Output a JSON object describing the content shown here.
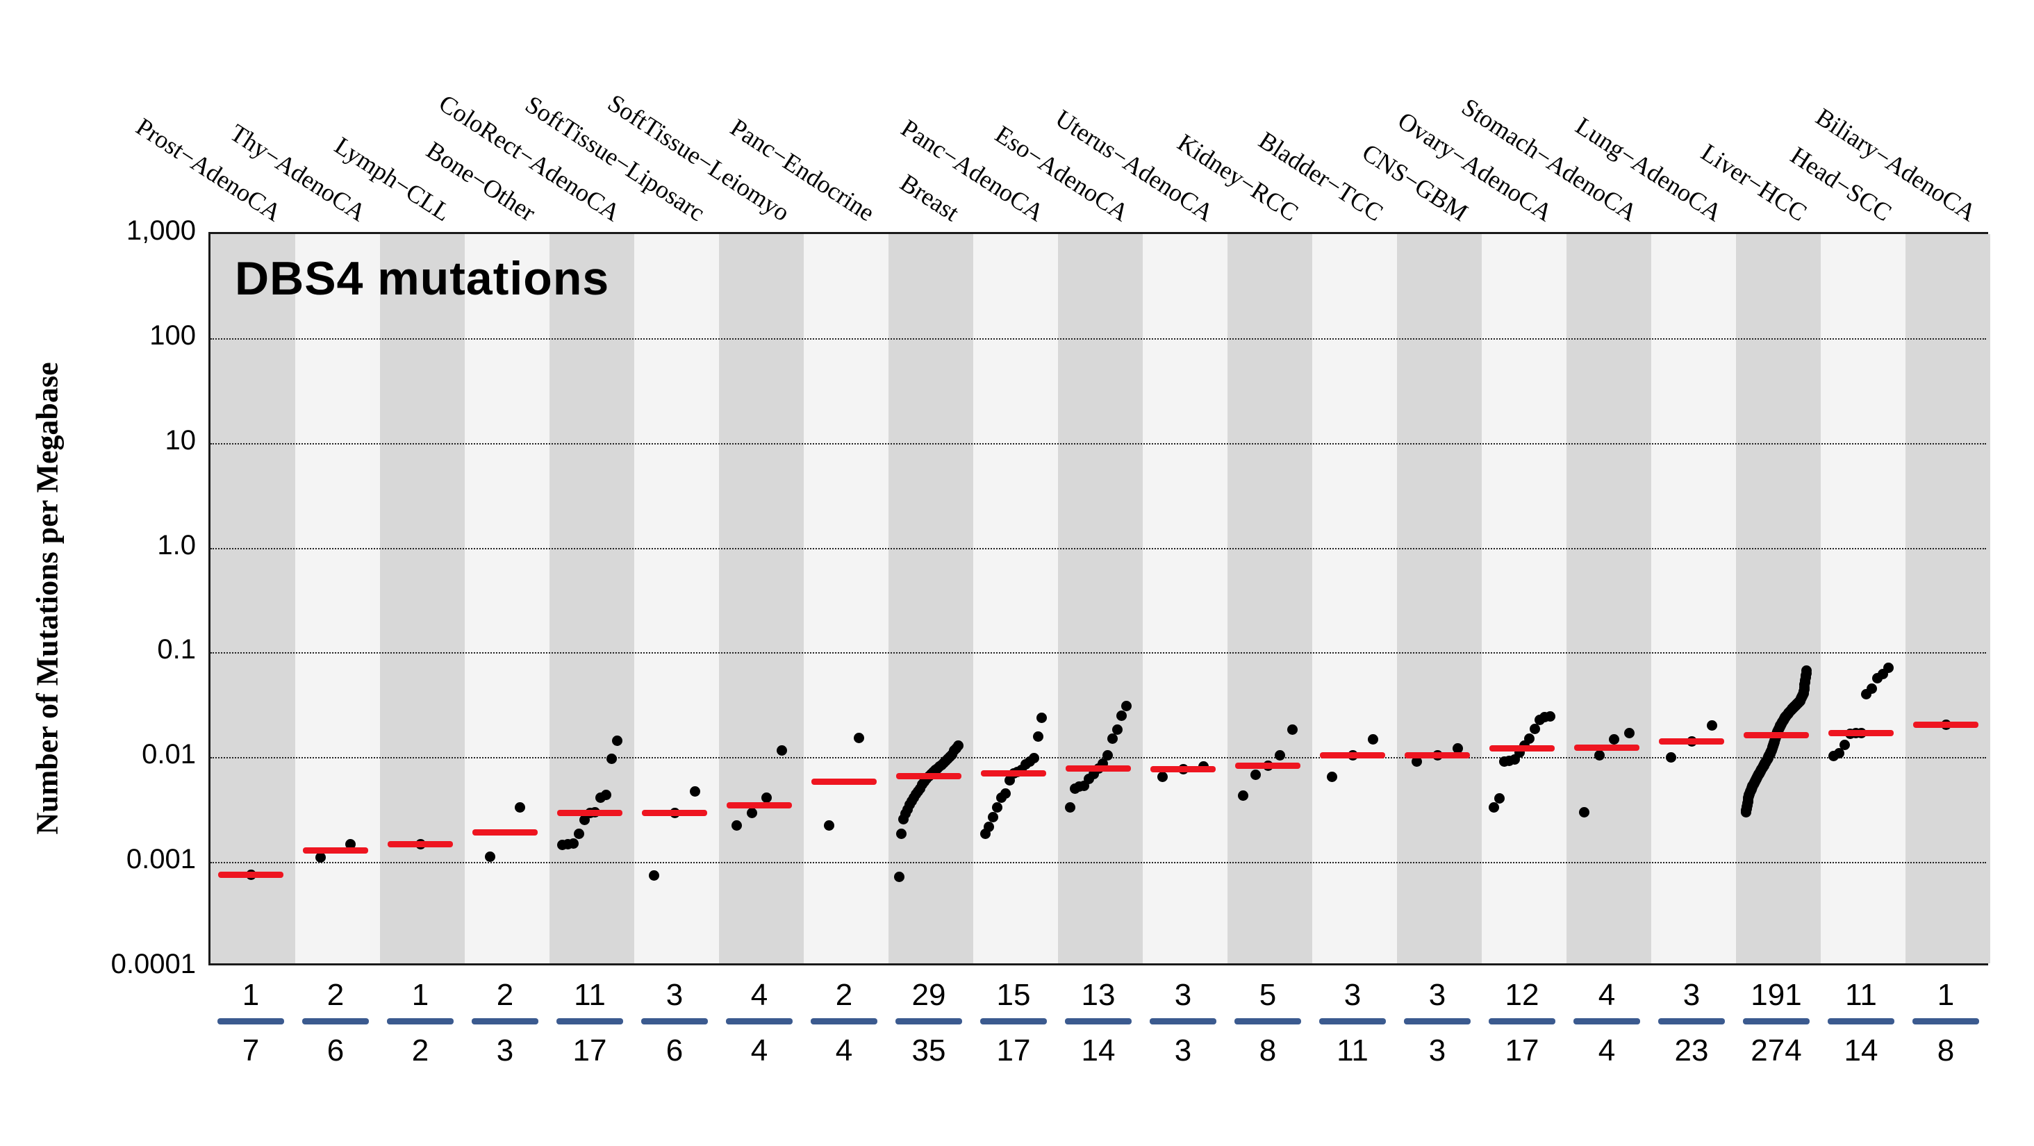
{
  "title": "DBS4 mutations",
  "y_axis": {
    "label": "Number of Mutations per Megabase"
  },
  "colors": {
    "median_line": "#ee1520",
    "fraction_bar": "#3b5a8f",
    "dot": "#000000",
    "column_dark": "#d8d8d8",
    "column_light": "#f4f4f4",
    "grid": "#222222",
    "border": "#1a1a1a",
    "background": "#ffffff"
  },
  "chart_data": {
    "type": "strip",
    "title": "DBS4 mutations",
    "ylabel": "Number of Mutations per Megabase",
    "ylim": [
      0.0001,
      1000
    ],
    "grid": "dotted-horizontal-per-decade",
    "y_ticks": [
      {
        "label": "1,000",
        "value": 1000
      },
      {
        "label": "100",
        "value": 100
      },
      {
        "label": "10",
        "value": 10
      },
      {
        "label": "1.0",
        "value": 1
      },
      {
        "label": "0.1",
        "value": 0.1
      },
      {
        "label": "0.01",
        "value": 0.01
      },
      {
        "label": "0.001",
        "value": 0.001
      },
      {
        "label": "0.0001",
        "value": 0.0001
      }
    ],
    "categories": [
      {
        "label": "Prost−AdenoCA",
        "fraction_top": "1",
        "fraction_bottom": "7",
        "median": 0.00073,
        "points": [
          0.00073
        ]
      },
      {
        "label": "Thy−AdenoCA",
        "fraction_top": "2",
        "fraction_bottom": "6",
        "median": 0.00126,
        "points": [
          0.00108,
          0.00144
        ]
      },
      {
        "label": "Lymph−CLL",
        "fraction_top": "1",
        "fraction_bottom": "2",
        "median": 0.00144,
        "points": [
          0.00144
        ]
      },
      {
        "label": "Bone−Other",
        "fraction_top": "2",
        "fraction_bottom": "3",
        "median": 0.00187,
        "points": [
          0.00109,
          0.00324
        ]
      },
      {
        "label": "ColoRect−AdenoCA",
        "fraction_top": "11",
        "fraction_bottom": "17",
        "median": 0.00286,
        "points": [
          0.00142,
          0.00144,
          0.00146,
          0.00181,
          0.00245,
          0.00286,
          0.00288,
          0.00401,
          0.00427,
          0.00941,
          0.014
        ]
      },
      {
        "label": "SoftTissue−Liposarc",
        "fraction_top": "3",
        "fraction_bottom": "6",
        "median": 0.00286,
        "points": [
          0.00072,
          0.00286,
          0.00457
        ]
      },
      {
        "label": "SoftTissue−Leiomyo",
        "fraction_top": "4",
        "fraction_bottom": "4",
        "median": 0.00335,
        "points": [
          0.00215,
          0.00283,
          0.00397,
          0.0113
        ]
      },
      {
        "label": "Panc−Endocrine",
        "fraction_top": "2",
        "fraction_bottom": "4",
        "median": 0.00566,
        "points": [
          0.00215,
          0.0149
        ]
      },
      {
        "label": "Breast",
        "fraction_top": "29",
        "fraction_bottom": "35",
        "median": 0.0064,
        "points": [
          0.0007,
          0.0018,
          0.0025,
          0.0028,
          0.0031,
          0.0034,
          0.0037,
          0.004,
          0.0043,
          0.0046,
          0.0049,
          0.0053,
          0.0057,
          0.006,
          0.0064,
          0.0067,
          0.007,
          0.0073,
          0.0076,
          0.0079,
          0.0082,
          0.0086,
          0.009,
          0.0094,
          0.0098,
          0.0103,
          0.0113,
          0.0118,
          0.0126
        ]
      },
      {
        "label": "Panc−AdenoCA",
        "fraction_top": "15",
        "fraction_bottom": "17",
        "median": 0.0068,
        "points": [
          0.0018,
          0.0021,
          0.0026,
          0.0032,
          0.004,
          0.0044,
          0.0058,
          0.0068,
          0.007,
          0.0074,
          0.0083,
          0.0088,
          0.0095,
          0.0152,
          0.023
        ]
      },
      {
        "label": "Eso−AdenoCA",
        "fraction_top": "13",
        "fraction_bottom": "14",
        "median": 0.0076,
        "points": [
          0.0032,
          0.0049,
          0.0051,
          0.0052,
          0.006,
          0.0067,
          0.0076,
          0.0084,
          0.0101,
          0.0146,
          0.0179,
          0.024,
          0.0298
        ]
      },
      {
        "label": "Uterus−AdenoCA",
        "fraction_top": "3",
        "fraction_bottom": "3",
        "median": 0.0075,
        "points": [
          0.0063,
          0.0075,
          0.0079
        ]
      },
      {
        "label": "Kidney−RCC",
        "fraction_top": "5",
        "fraction_bottom": "8",
        "median": 0.0081,
        "points": [
          0.0042,
          0.0066,
          0.0081,
          0.0101,
          0.0177
        ]
      },
      {
        "label": "Bladder−TCC",
        "fraction_top": "3",
        "fraction_bottom": "11",
        "median": 0.0101,
        "points": [
          0.0063,
          0.0101,
          0.0144
        ]
      },
      {
        "label": "CNS−GBM",
        "fraction_top": "3",
        "fraction_bottom": "3",
        "median": 0.0101,
        "points": [
          0.0088,
          0.0101,
          0.0117
        ]
      },
      {
        "label": "Ovary−AdenoCA",
        "fraction_top": "12",
        "fraction_bottom": "17",
        "median": 0.0117,
        "points": [
          0.0032,
          0.0039,
          0.0088,
          0.0089,
          0.0092,
          0.0108,
          0.0126,
          0.0146,
          0.018,
          0.0222,
          0.0235,
          0.0238
        ]
      },
      {
        "label": "Stomach−AdenoCA",
        "fraction_top": "4",
        "fraction_bottom": "4",
        "median": 0.012,
        "points": [
          0.0029,
          0.0101,
          0.0143,
          0.0165
        ]
      },
      {
        "label": "Lung−AdenoCA",
        "fraction_top": "3",
        "fraction_bottom": "23",
        "median": 0.0138,
        "points": [
          0.0097,
          0.0138,
          0.0196
        ]
      },
      {
        "label": "Liver−HCC",
        "fraction_top": "191",
        "fraction_bottom": "274",
        "median": 0.0158,
        "dense_points": {
          "count": 191,
          "quantiles": [
            0.0029,
            0.0042,
            0.005,
            0.0057,
            0.0065,
            0.0073,
            0.0082,
            0.0092,
            0.0105,
            0.0125,
            0.0158,
            0.0185,
            0.021,
            0.0235,
            0.0255,
            0.0275,
            0.0295,
            0.0315,
            0.034,
            0.04,
            0.065
          ]
        }
      },
      {
        "label": "Head−SCC",
        "fraction_top": "11",
        "fraction_bottom": "14",
        "median": 0.0166,
        "points": [
          0.01,
          0.0106,
          0.0128,
          0.0162,
          0.0165,
          0.0166,
          0.039,
          0.044,
          0.055,
          0.06,
          0.069
        ]
      },
      {
        "label": "Biliary−AdenoCA",
        "fraction_top": "1",
        "fraction_bottom": "8",
        "median": 0.0197,
        "points": [
          0.0197
        ]
      }
    ]
  },
  "layout_values": {
    "note_visible_text_only": true
  }
}
